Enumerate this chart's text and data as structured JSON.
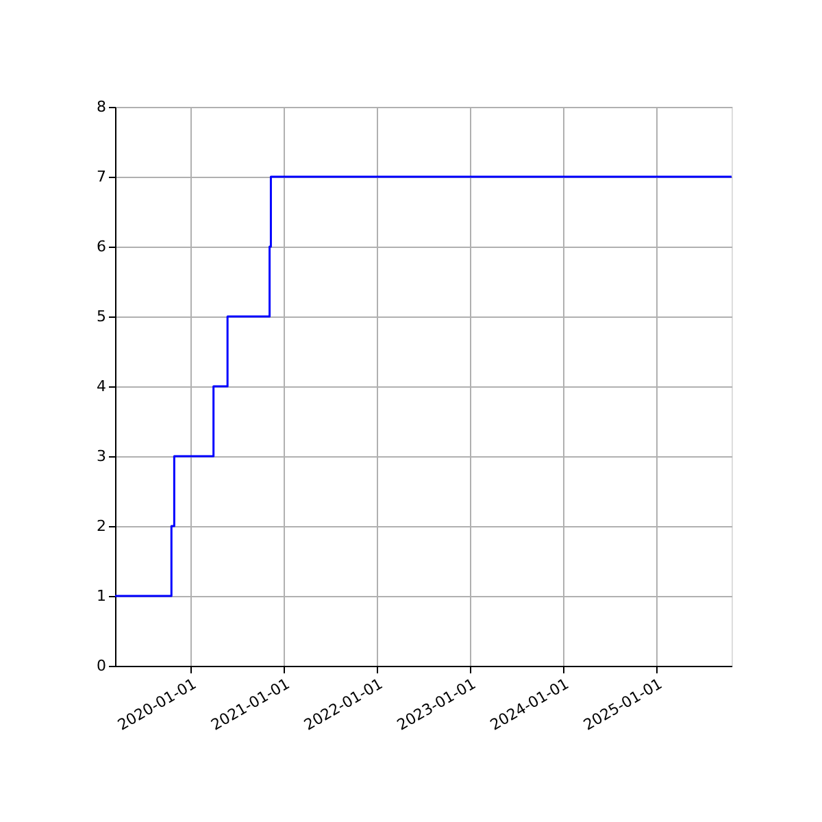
{
  "chart_data": {
    "type": "step",
    "x": [
      "2019-03-11",
      "2019-10-18",
      "2019-10-29",
      "2020-03-31",
      "2020-05-25",
      "2020-11-06",
      "2020-11-11",
      "2025-10-23"
    ],
    "series": [
      {
        "color": "#0000ff",
        "values": [
          1,
          2,
          3,
          4,
          5,
          6,
          7,
          7
        ]
      }
    ],
    "xlim": [
      "2019-03-11",
      "2025-10-23"
    ],
    "xticks": [
      {
        "value": "2020-01-01",
        "label": "2020-01-01"
      },
      {
        "value": "2021-01-01",
        "label": "2021-01-01"
      },
      {
        "value": "2022-01-01",
        "label": "2022-01-01"
      },
      {
        "value": "2023-01-01",
        "label": "2023-01-01"
      },
      {
        "value": "2024-01-01",
        "label": "2024-01-01"
      },
      {
        "value": "2025-01-01",
        "label": "2025-01-01"
      }
    ],
    "ylim": [
      0,
      8
    ],
    "yticks": [
      0,
      1,
      2,
      3,
      4,
      5,
      6,
      7,
      8
    ],
    "grid": true,
    "marker": "none",
    "line_style": "solid"
  }
}
